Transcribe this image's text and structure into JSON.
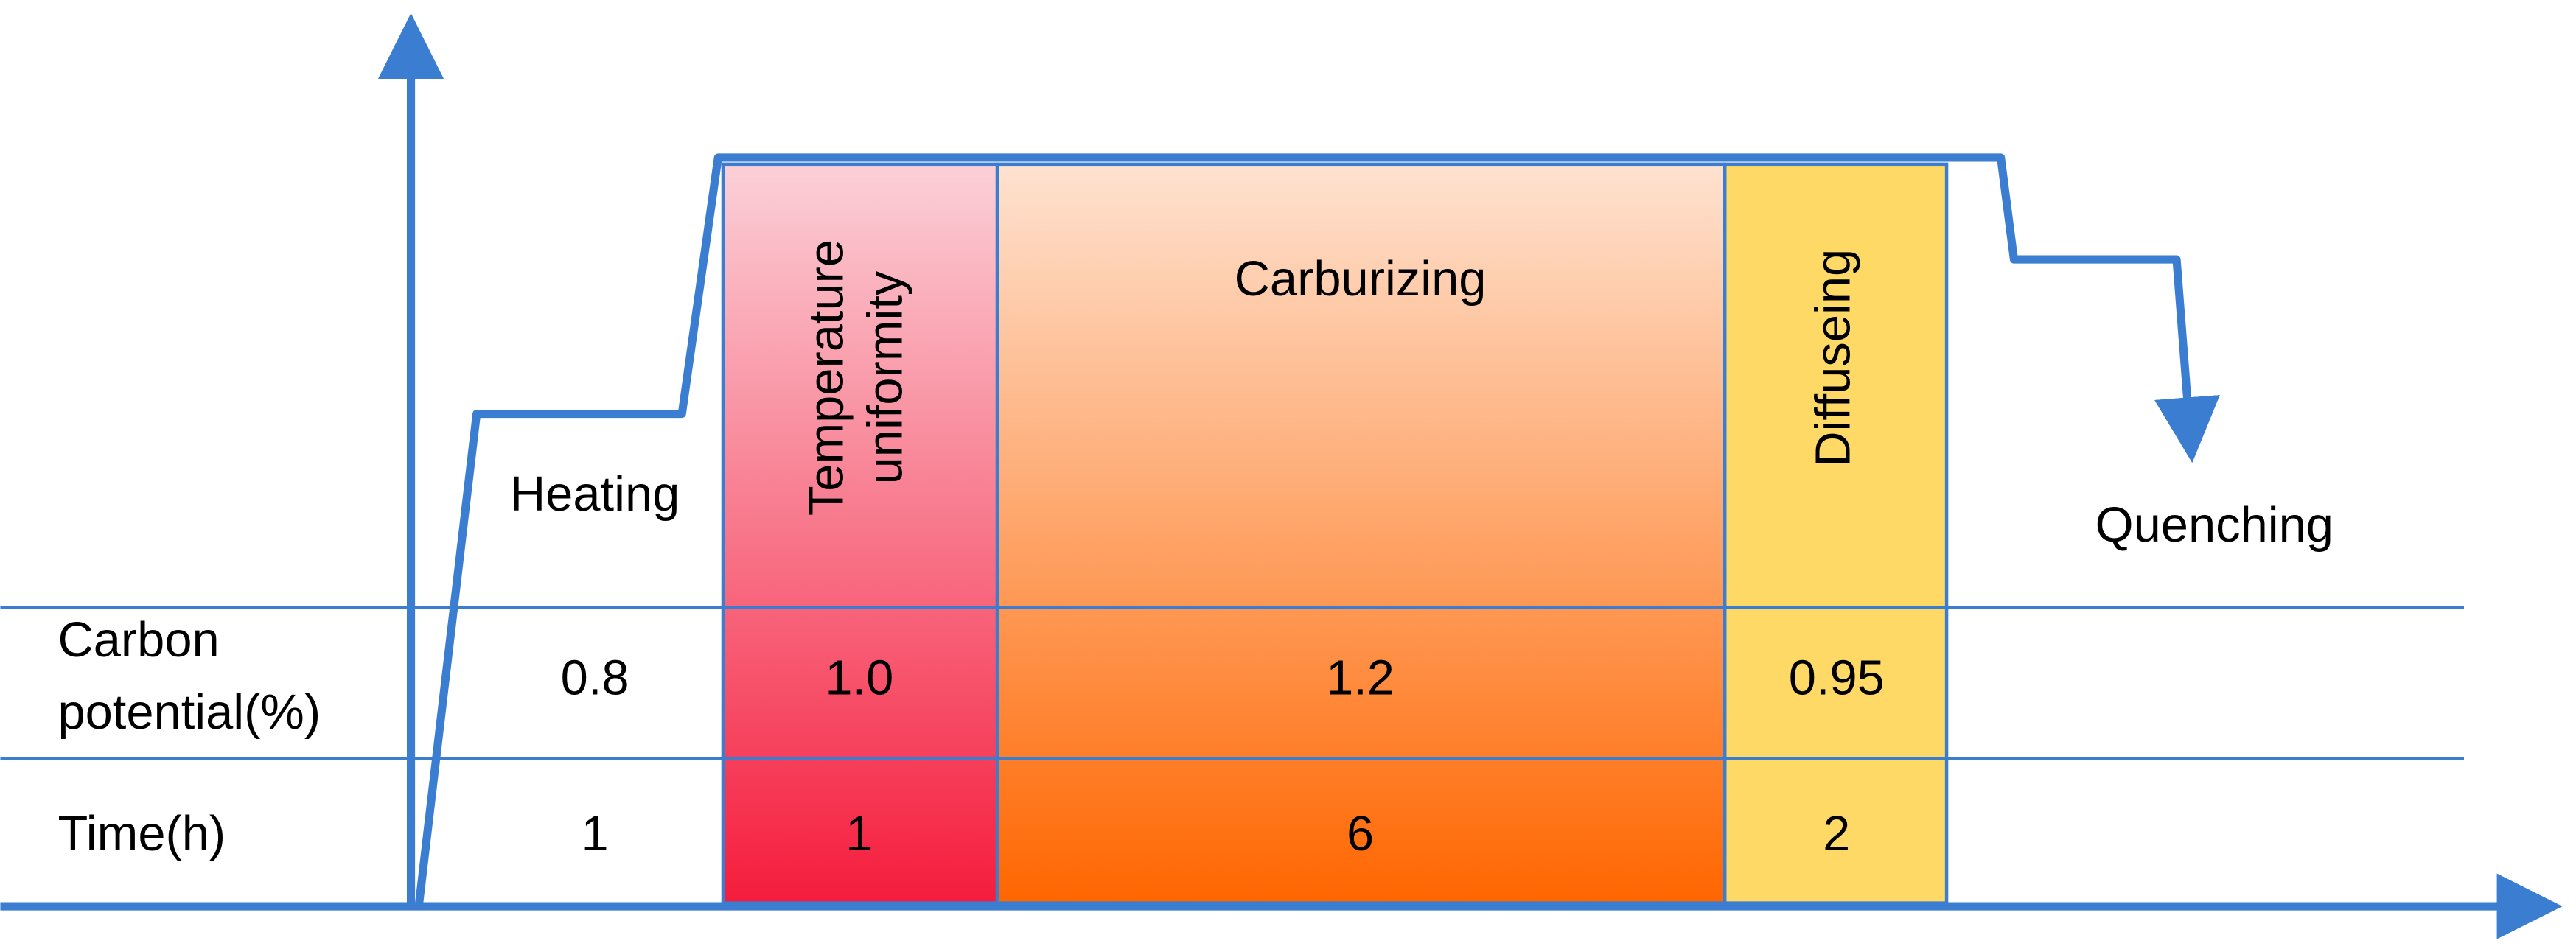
{
  "row_headers": {
    "carbon_potential": [
      "Carbon",
      "potential(%)"
    ],
    "time": "Time(h)"
  },
  "stages": [
    {
      "label": [
        "Heating"
      ],
      "carbon_potential": "0.8",
      "time": "1"
    },
    {
      "label": [
        "Temperature",
        "uniformity"
      ],
      "carbon_potential": "1.0",
      "time": "1"
    },
    {
      "label": [
        "Carburizing"
      ],
      "carbon_potential": "1.2",
      "time": "6"
    },
    {
      "label": [
        "Diffuseing"
      ],
      "carbon_potential": "0.95",
      "time": "2"
    }
  ],
  "final_stage": "Quenching"
}
